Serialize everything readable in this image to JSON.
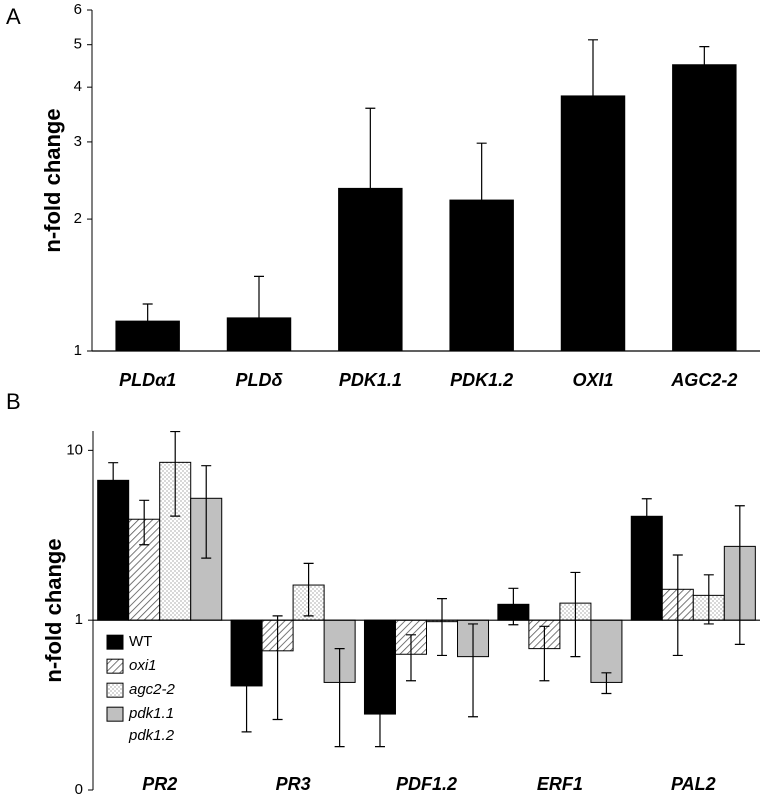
{
  "chart_data": [
    {
      "type": "bar",
      "panel_label": "A",
      "y_label": "n-fold change",
      "log_scale": true,
      "categories": [
        "PLDα1",
        "PLDδ",
        "PDK1.1",
        "PDK1.2",
        "OXI1",
        "AGC2-2"
      ],
      "values": [
        1.17,
        1.19,
        2.35,
        2.21,
        3.82,
        4.5
      ],
      "errors": [
        0.11,
        0.29,
        1.23,
        0.77,
        1.31,
        0.45
      ],
      "error_direction": "up",
      "color": "#000000",
      "ylim": [
        1,
        6
      ],
      "yticks": [
        1,
        2,
        3,
        4,
        5,
        6
      ]
    },
    {
      "type": "bar",
      "panel_label": "B",
      "y_label": "n-fold change",
      "log_scale": true,
      "categories": [
        "PR2",
        "PR3",
        "PDF1.2",
        "ERF1",
        "PAL2"
      ],
      "series": [
        {
          "name": "WT",
          "color": "#000000",
          "pattern": "solid",
          "values": [
            6.66,
            0.41,
            0.28,
            1.24,
            4.09
          ],
          "errors": [
            1.8,
            0.19,
            0.1,
            0.3,
            1.1
          ]
        },
        {
          "name": "oxi1",
          "color": "#ffffff",
          "pattern": "hatch",
          "values": [
            3.93,
            0.66,
            0.63,
            0.68,
            1.52
          ],
          "errors": [
            1.15,
            0.4,
            0.19,
            0.24,
            0.9
          ]
        },
        {
          "name": "agc2-2",
          "color": "#ffffff",
          "pattern": "dots",
          "values": [
            8.5,
            1.61,
            0.98,
            1.26,
            1.4
          ],
          "errors": [
            4.4,
            0.55,
            0.36,
            0.65,
            0.45
          ]
        },
        {
          "name": "pdk1.1 pdk1.2",
          "color": "#c0c0c0",
          "pattern": "solid",
          "values": [
            5.22,
            0.43,
            0.61,
            0.43,
            2.72
          ],
          "errors": [
            2.9,
            0.25,
            0.34,
            0.06,
            2.0
          ]
        }
      ],
      "error_direction": "both",
      "legend": "lower left",
      "ylim": [
        0.1,
        13
      ],
      "yticks": [
        {
          "value": 0.1,
          "label": "0"
        },
        1,
        10
      ]
    }
  ]
}
